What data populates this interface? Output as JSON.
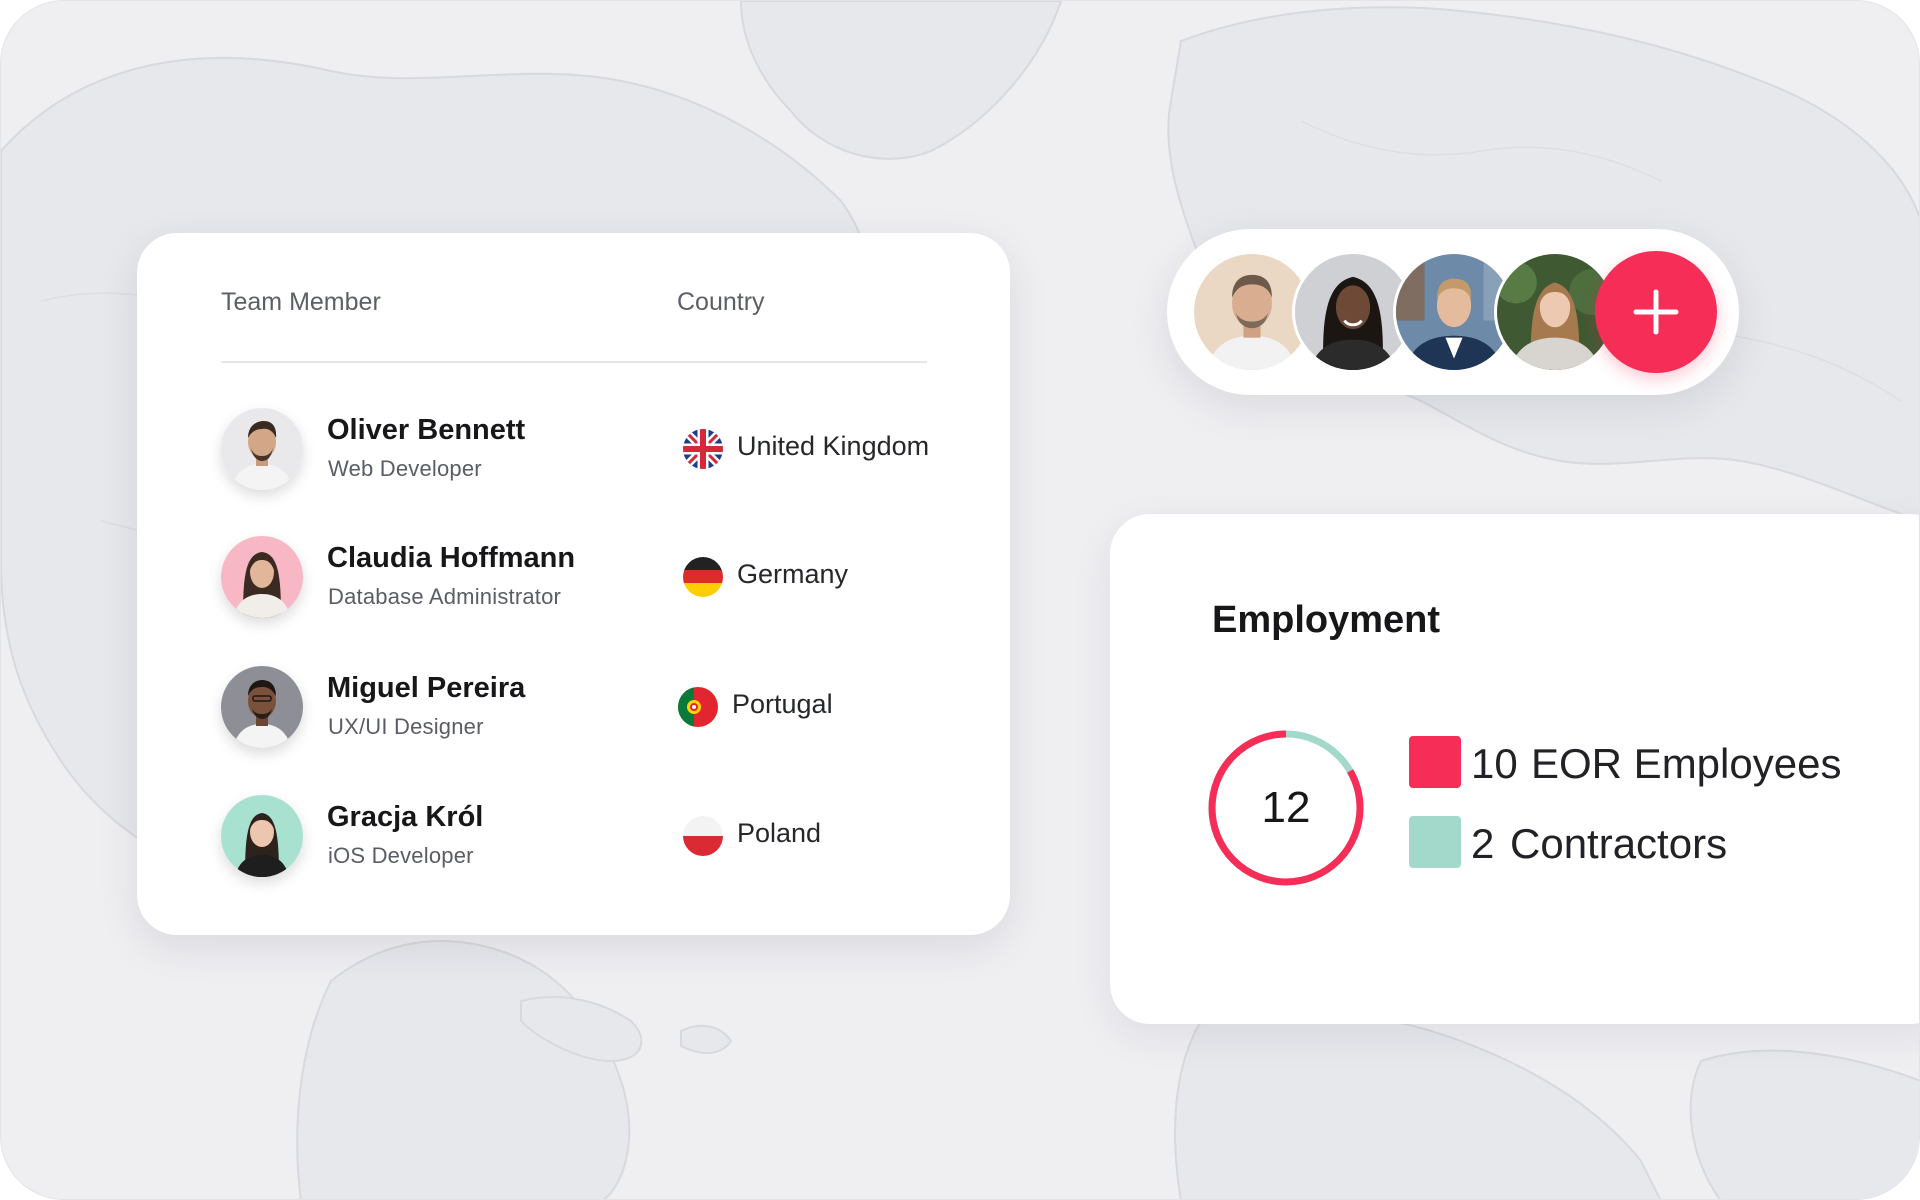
{
  "team_table": {
    "headers": {
      "member": "Team Member",
      "country": "Country"
    },
    "rows": [
      {
        "name": "Oliver Bennett",
        "role": "Web Developer",
        "country": "United Kingdom",
        "flag": "uk-flag-icon"
      },
      {
        "name": "Claudia Hoffmann",
        "role": "Database Administrator",
        "country": "Germany",
        "flag": "germany-flag-icon"
      },
      {
        "name": "Miguel Pereira",
        "role": "UX/UI Designer",
        "country": "Portugal",
        "flag": "portugal-flag-icon"
      },
      {
        "name": "Gracja Król",
        "role": "iOS Developer",
        "country": "Poland",
        "flag": "poland-flag-icon"
      }
    ]
  },
  "team_avatars": {
    "count_shown": 4,
    "add_icon": "plus-icon"
  },
  "employment": {
    "title": "Employment",
    "total": "12",
    "legend": [
      {
        "value": "10",
        "label": "EOR Employees",
        "color": "#f52d57"
      },
      {
        "value": "2",
        "label": "Contractors",
        "color": "#a2d9cb"
      }
    ]
  },
  "colors": {
    "accent": "#f52d57",
    "secondary": "#a2d9cb",
    "background": "#efeff2"
  }
}
